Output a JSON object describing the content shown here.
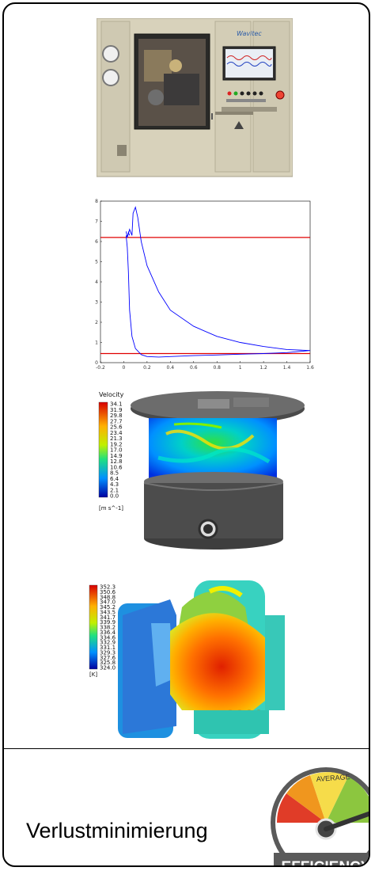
{
  "caption": "Verlustminimierung",
  "machine": {
    "brand": "Wavitec"
  },
  "chart_data": {
    "type": "line",
    "xlim": [
      -0.2,
      1.6
    ],
    "ylim": [
      0,
      8
    ],
    "x_ticks": [
      "-0.2",
      "0",
      "0.2",
      "0.4",
      "0.6",
      "0.8",
      "1",
      "1.2",
      "1.4",
      "1.6"
    ],
    "y_ticks": [
      "0",
      "1",
      "2",
      "3",
      "4",
      "5",
      "6",
      "7",
      "8"
    ],
    "reference_lines": [
      6.2,
      0.45
    ],
    "series": [
      {
        "color": "#0000ff",
        "x": [
          0.05,
          0.04,
          0.03,
          0.02,
          0.03,
          0.05,
          0.07,
          0.08,
          0.1,
          0.12,
          0.15,
          0.2,
          0.3,
          0.4,
          0.6,
          0.8,
          1.0,
          1.2,
          1.4,
          1.6,
          1.4,
          1.2,
          1.0,
          0.8,
          0.6,
          0.4,
          0.3,
          0.2,
          0.15,
          0.1,
          0.07,
          0.05,
          0.04,
          0.03,
          0.02
        ],
        "y": [
          6.3,
          6.45,
          6.2,
          6.5,
          6.2,
          6.6,
          6.3,
          7.4,
          7.7,
          7.2,
          6.0,
          4.8,
          3.5,
          2.6,
          1.8,
          1.3,
          1.0,
          0.8,
          0.65,
          0.6,
          0.5,
          0.45,
          0.42,
          0.38,
          0.35,
          0.3,
          0.28,
          0.3,
          0.4,
          0.7,
          1.3,
          2.6,
          4.5,
          5.7,
          6.3
        ]
      }
    ]
  },
  "velocity_legend": {
    "title": "Velocity",
    "values": [
      "34.1",
      "31.9",
      "29.8",
      "27.7",
      "25.6",
      "23.4",
      "21.3",
      "19.2",
      "17.0",
      "14.9",
      "12.8",
      "10.6",
      "8.5",
      "6.4",
      "4.3",
      "2.1",
      "0.0"
    ],
    "unit": "[m s^-1]",
    "colors": [
      "#d70000",
      "#ff3000",
      "#ff7000",
      "#ffa000",
      "#ffd000",
      "#f0f000",
      "#c0f000",
      "#80f000",
      "#40f040",
      "#20e080",
      "#00e0c0",
      "#00c0f0",
      "#0090ff",
      "#0060ff",
      "#0030f0",
      "#0010d0",
      "#0000a0"
    ]
  },
  "thermal_legend": {
    "values": [
      "352.3",
      "350.6",
      "348.8",
      "347.0",
      "345.2",
      "343.5",
      "341.7",
      "339.9",
      "338.2",
      "336.4",
      "334.6",
      "332.9",
      "331.1",
      "329.3",
      "327.6",
      "325.8",
      "324.0"
    ],
    "unit": "[K]",
    "colors": [
      "#d70000",
      "#ff3000",
      "#ff7000",
      "#ffa000",
      "#ffd000",
      "#f0f000",
      "#c0f000",
      "#80f000",
      "#40f040",
      "#20e080",
      "#00e0c0",
      "#00c0f0",
      "#0090ff",
      "#0060ff",
      "#0030f0",
      "#0010d0",
      "#0000a0"
    ]
  },
  "gauge": {
    "label": "AVERAGE",
    "word": "EFFICIENCY",
    "colors": {
      "red": "#e03c28",
      "orange": "#f0961e",
      "yellow": "#f6dc4a",
      "green": "#8cc63f",
      "rim": "#5a5a5a"
    }
  }
}
